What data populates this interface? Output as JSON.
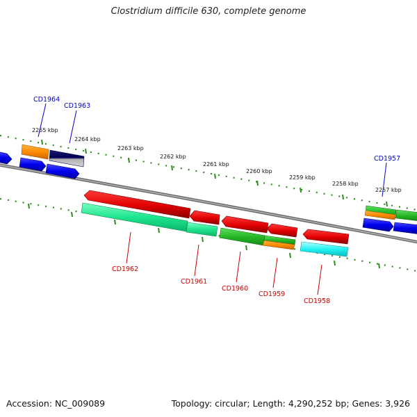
{
  "title": "Clostridium difficile 630, complete genome",
  "footer": {
    "accession": "Accession: NC_009089",
    "summary": "Topology: circular; Length: 4,290,252 bp; Genes: 3,926"
  },
  "colors": {
    "backbone": "#8a8a8a",
    "ticks": "#2e8b1e",
    "tick_label": "#111111",
    "forward_label": "#0000cc",
    "reverse_label": "#cc0000"
  },
  "scale_labels": [
    "2265 kbp",
    "2264 kbp",
    "2263 kbp",
    "2262 kbp",
    "2261 kbp",
    "2260 kbp",
    "2259 kbp",
    "2258 kbp",
    "2257 kbp"
  ],
  "gene_labels": {
    "forward": [
      "CD1964",
      "CD1963",
      "CD1957"
    ],
    "reverse": [
      "CD1962",
      "CD1961",
      "CD1960",
      "CD1959",
      "CD1958"
    ]
  }
}
